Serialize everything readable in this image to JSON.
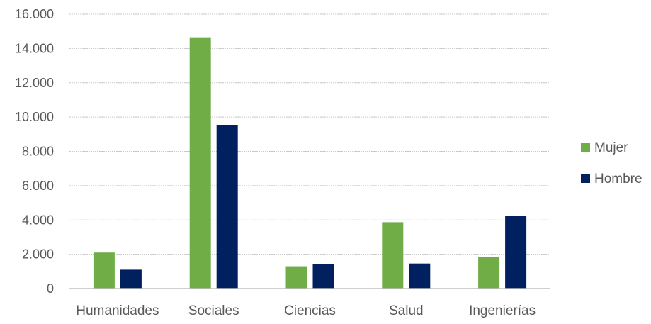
{
  "chart_data": {
    "type": "bar",
    "categories": [
      "Humanidades",
      "Sociales",
      "Ciencias",
      "Salud",
      "Ingenierías"
    ],
    "series": [
      {
        "name": "Mujer",
        "color": "#70AD47",
        "values": [
          2100,
          14650,
          1300,
          3870,
          1830
        ]
      },
      {
        "name": "Hombre",
        "color": "#002060",
        "values": [
          1100,
          9550,
          1420,
          1460,
          4250
        ]
      }
    ],
    "title": "",
    "xlabel": "",
    "ylabel": "",
    "ylim": [
      0,
      16000
    ],
    "yticks": [
      "0",
      "2.000",
      "4.000",
      "6.000",
      "8.000",
      "10.000",
      "12.000",
      "14.000",
      "16.000"
    ],
    "grid": true,
    "legend_position": "right"
  }
}
